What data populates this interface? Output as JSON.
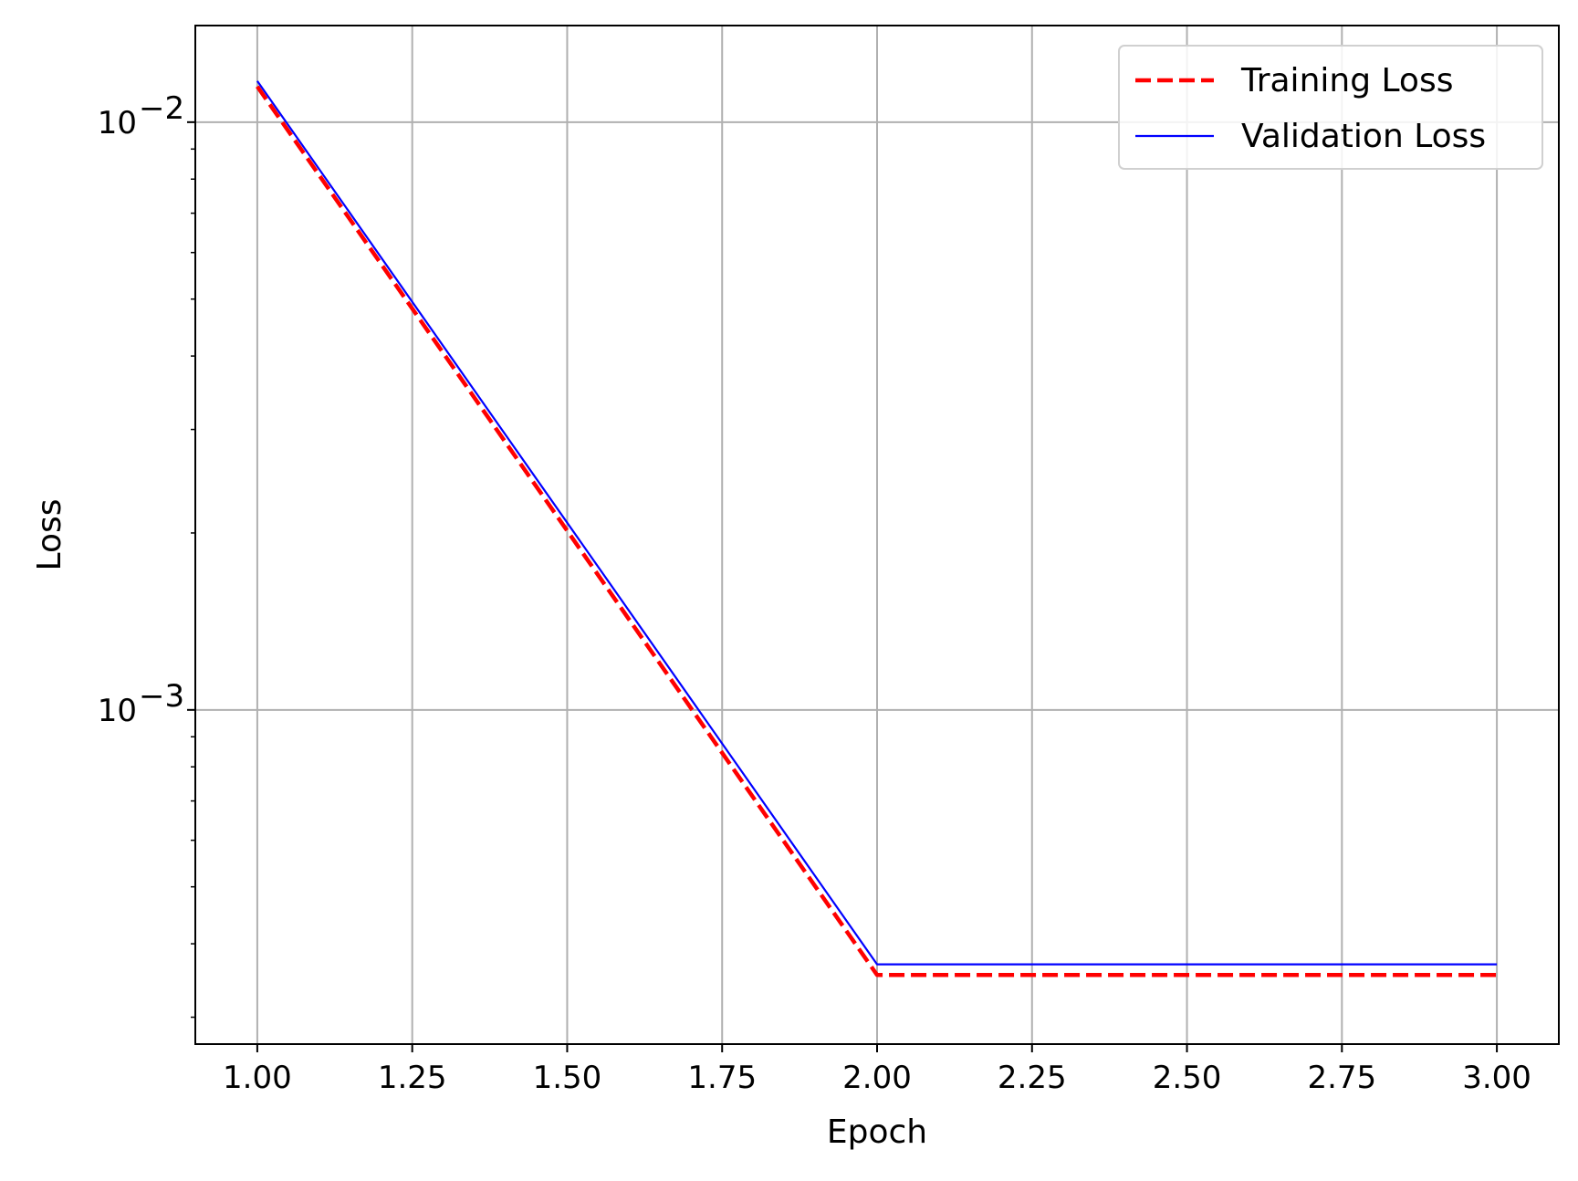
{
  "chart_data": {
    "type": "line",
    "title": "",
    "xlabel": "Epoch",
    "ylabel": "Loss",
    "yscale": "log",
    "grid": true,
    "legend_position": "top-right",
    "xlim": [
      0.9,
      3.1
    ],
    "ylim": [
      0.00027,
      0.0146
    ],
    "x_ticks": [
      1.0,
      1.25,
      1.5,
      1.75,
      2.0,
      2.25,
      2.5,
      2.75,
      3.0
    ],
    "x_tick_labels": [
      "1.00",
      "1.25",
      "1.50",
      "1.75",
      "2.00",
      "2.25",
      "2.50",
      "2.75",
      "3.00"
    ],
    "y_major_ticks": [
      {
        "value": 0.01,
        "base": "10",
        "exp": "−2"
      },
      {
        "value": 0.001,
        "base": "10",
        "exp": "−3"
      }
    ],
    "y_minor_ticks": [
      0.0003,
      0.0004,
      0.0005,
      0.0006,
      0.0007,
      0.0008,
      0.0009,
      0.002,
      0.003,
      0.004,
      0.005,
      0.006,
      0.007,
      0.008,
      0.009
    ],
    "series": [
      {
        "name": "Training Loss",
        "color": "#ff0000",
        "style": "dashed",
        "x": [
          1,
          2,
          3
        ],
        "y": [
          0.0115,
          0.000354,
          0.000354
        ]
      },
      {
        "name": "Validation Loss",
        "color": "#0000ff",
        "style": "solid",
        "x": [
          1,
          2,
          3
        ],
        "y": [
          0.01175,
          0.000369,
          0.000369
        ]
      }
    ]
  }
}
